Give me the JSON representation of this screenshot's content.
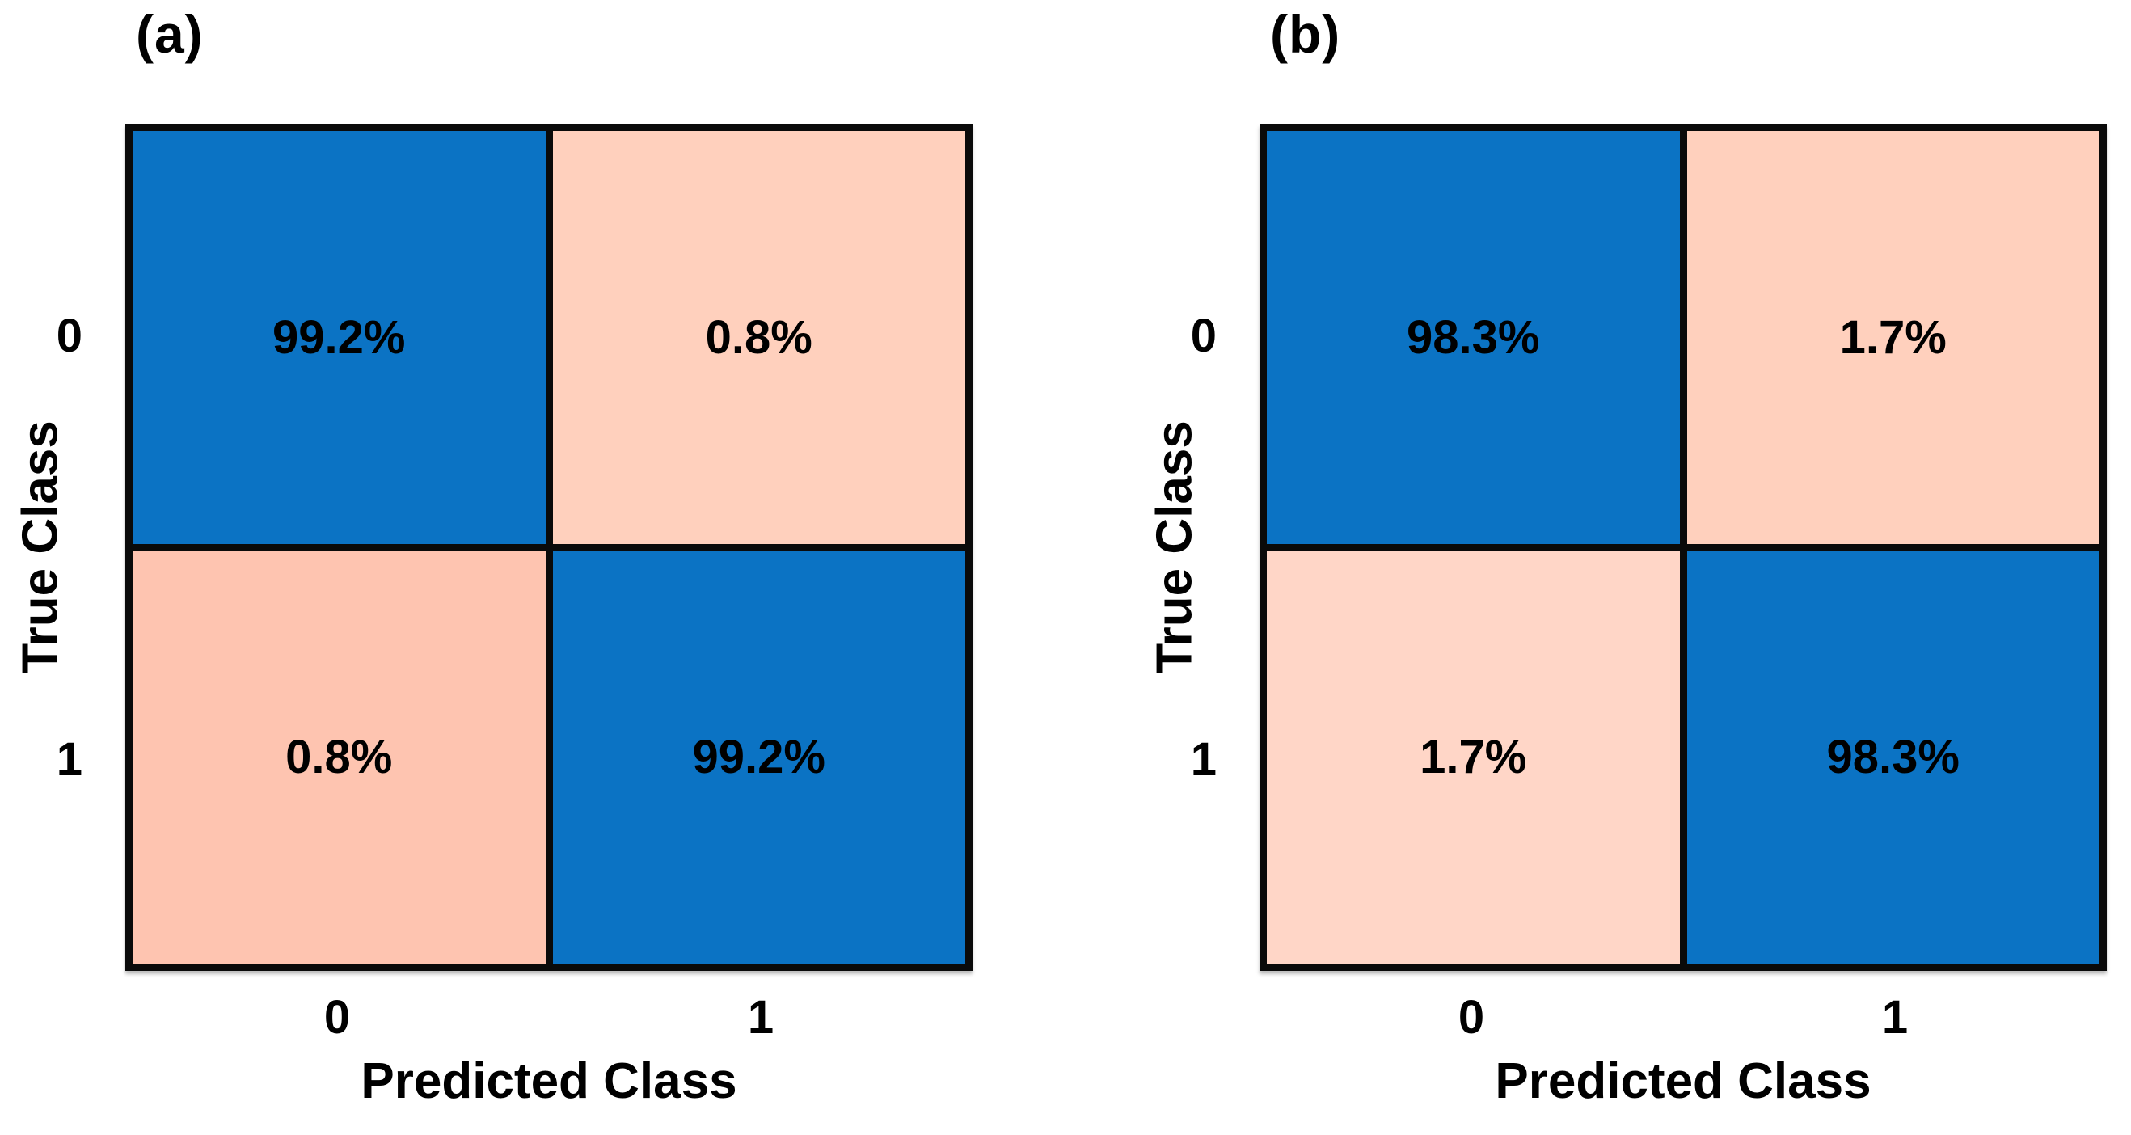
{
  "figure": {
    "type": "confusion-matrix-pair",
    "background": "#ffffff",
    "colors": {
      "diagonal_blue": "#0b73c4",
      "off_diagonal_pink": "#ffd0bd",
      "off_diagonal_pink_dark": "#fec4b0",
      "off_diagonal_pink_light": "#ffd6c7",
      "grid_line": "#0a0a0a",
      "text": "#000000"
    }
  },
  "panels": [
    {
      "label": "(a)",
      "x_axis_label": "Predicted Class",
      "y_axis_label": "True Class",
      "x_ticks": [
        "0",
        "1"
      ],
      "y_ticks": [
        "0",
        "1"
      ],
      "cells": [
        [
          {
            "value": "99.2%",
            "color": "#0b73c4"
          },
          {
            "value": "0.8%",
            "color": "#ffd0bd"
          }
        ],
        [
          {
            "value": "0.8%",
            "color": "#fec4b0"
          },
          {
            "value": "99.2%",
            "color": "#0b73c4"
          }
        ]
      ]
    },
    {
      "label": "(b)",
      "x_axis_label": "Predicted Class",
      "y_axis_label": "True Class",
      "x_ticks": [
        "0",
        "1"
      ],
      "y_ticks": [
        "0",
        "1"
      ],
      "cells": [
        [
          {
            "value": "98.3%",
            "color": "#0b73c4"
          },
          {
            "value": "1.7%",
            "color": "#ffd0bd"
          }
        ],
        [
          {
            "value": "1.7%",
            "color": "#ffd6c7"
          },
          {
            "value": "98.3%",
            "color": "#0b73c4"
          }
        ]
      ]
    }
  ],
  "chart_data": [
    {
      "type": "heatmap",
      "title": "(a)",
      "xlabel": "Predicted Class",
      "ylabel": "True Class",
      "x_categories": [
        "0",
        "1"
      ],
      "y_categories": [
        "0",
        "1"
      ],
      "values_percent": [
        [
          99.2,
          0.8
        ],
        [
          0.8,
          99.2
        ]
      ],
      "cell_labels": [
        [
          "99.2%",
          "0.8%"
        ],
        [
          "0.8%",
          "99.2%"
        ]
      ],
      "legend_position": "none",
      "grid": false
    },
    {
      "type": "heatmap",
      "title": "(b)",
      "xlabel": "Predicted Class",
      "ylabel": "True Class",
      "x_categories": [
        "0",
        "1"
      ],
      "y_categories": [
        "0",
        "1"
      ],
      "values_percent": [
        [
          98.3,
          1.7
        ],
        [
          1.7,
          98.3
        ]
      ],
      "cell_labels": [
        [
          "98.3%",
          "1.7%"
        ],
        [
          "1.7%",
          "98.3%"
        ]
      ],
      "legend_position": "none",
      "grid": false
    }
  ]
}
